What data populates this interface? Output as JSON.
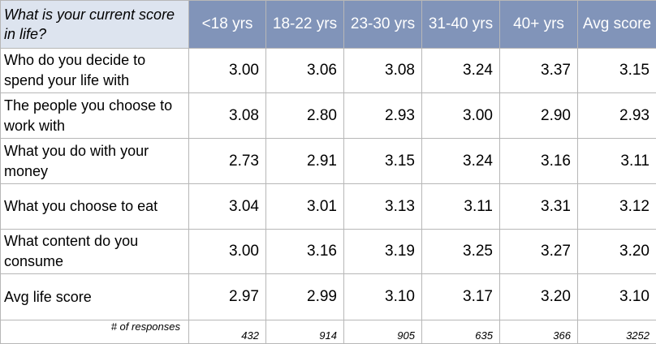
{
  "chart_data": {
    "type": "table",
    "title": "What is your current score in life?",
    "columns": [
      "<18 yrs",
      "18-22 yrs",
      "23-30 yrs",
      "31-40 yrs",
      "40+ yrs",
      "Avg score"
    ],
    "rows": [
      {
        "label": "Who do you decide to spend your life with",
        "values": [
          "3.00",
          "3.06",
          "3.08",
          "3.24",
          "3.37",
          "3.15"
        ]
      },
      {
        "label": "The people you choose to work with",
        "values": [
          "3.08",
          "2.80",
          "2.93",
          "3.00",
          "2.90",
          "2.93"
        ]
      },
      {
        "label": "What you do with your money",
        "values": [
          "2.73",
          "2.91",
          "3.15",
          "3.24",
          "3.16",
          "3.11"
        ]
      },
      {
        "label": "What you choose to eat",
        "values": [
          "3.04",
          "3.01",
          "3.13",
          "3.11",
          "3.31",
          "3.12"
        ]
      },
      {
        "label": "What content do you consume",
        "values": [
          "3.00",
          "3.16",
          "3.19",
          "3.25",
          "3.27",
          "3.20"
        ]
      },
      {
        "label": "Avg life score",
        "values": [
          "2.97",
          "2.99",
          "3.10",
          "3.17",
          "3.20",
          "3.10"
        ]
      }
    ],
    "responses": {
      "label": "# of responses",
      "values": [
        "432",
        "914",
        "905",
        "635",
        "366",
        "3252"
      ]
    }
  },
  "colors": {
    "header_bg": "#8194b9",
    "corner_bg": "#dde4ef",
    "grid": "#b7b7b7"
  }
}
